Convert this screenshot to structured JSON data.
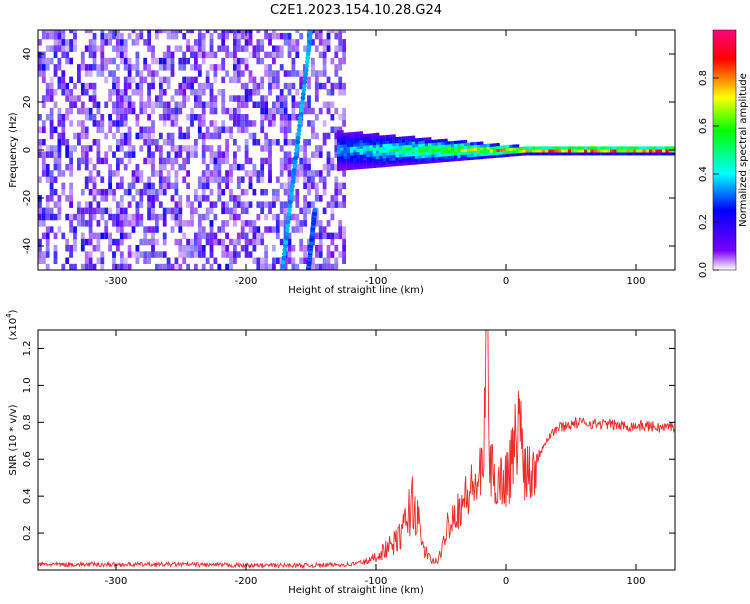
{
  "figure_title": "C2E1.2023.154.10.28.G24",
  "colors": {
    "snr_line": "#ee2b2b",
    "background": "#ffffff",
    "colorbar_stops": [
      "#ffffff",
      "#7a00ff",
      "#0000ff",
      "#00ffff",
      "#00ff00",
      "#ffff00",
      "#ff0000",
      "#ff0080"
    ]
  },
  "chart_data": [
    {
      "type": "heatmap",
      "title": "",
      "xlabel": "Height of straight line (km)",
      "ylabel": "Frequency (Hz)",
      "xlim": [
        -360,
        130
      ],
      "ylim": [
        -50,
        50
      ],
      "xticks": [
        -300,
        -200,
        -100,
        0,
        100
      ],
      "yticks": [
        -40,
        -20,
        0,
        20,
        40
      ],
      "colorbar": {
        "label": "Normalized spectral amplitude",
        "range": [
          0,
          1
        ],
        "ticks": [
          "0.0",
          "0.2",
          "0.4",
          "0.6",
          "0.8"
        ]
      },
      "features": [
        {
          "name": "noise",
          "x_range": [
            -360,
            -125
          ],
          "y_range": [
            -50,
            50
          ],
          "level": 0.15
        },
        {
          "name": "diagonal_streak",
          "x_start": -172,
          "y_start": -50,
          "x_end": -150,
          "y_end": 50,
          "level": 0.3
        },
        {
          "name": "lower_streak",
          "x_start": -152,
          "y_start": -50,
          "x_end": -147,
          "y_end": -25,
          "level": 0.25
        },
        {
          "name": "signal_band",
          "x_range": [
            -130,
            130
          ],
          "y_center": 0,
          "half_width_start": 8,
          "half_width_end": 1.5,
          "level_start": 0.35,
          "level_end": 0.92
        }
      ]
    },
    {
      "type": "line",
      "title": "",
      "xlabel": "Height of straight line (km)",
      "ylabel": "SNR (10 * v/v)",
      "yscale_label": "(x10^4)",
      "xlim": [
        -360,
        130
      ],
      "ylim": [
        0,
        1.3
      ],
      "xticks": [
        -300,
        -200,
        -100,
        0,
        100
      ],
      "yticks": [
        "0.2",
        "0.4",
        "0.6",
        "0.8",
        "1.0",
        "1.2"
      ],
      "series": [
        {
          "x": [
            -360,
            -300,
            -250,
            -200,
            -150,
            -120,
            -105,
            -95,
            -85,
            -80,
            -75,
            -72,
            -68,
            -65,
            -60,
            -55,
            -50,
            -45,
            -40,
            -35,
            -30,
            -25,
            -20,
            -17,
            -15,
            -12,
            -10,
            -5,
            0,
            5,
            10,
            15,
            20,
            25,
            30,
            35,
            40,
            50,
            60,
            70,
            80,
            90,
            100,
            110,
            120,
            130
          ],
          "y": [
            0.03,
            0.03,
            0.03,
            0.025,
            0.025,
            0.03,
            0.05,
            0.1,
            0.15,
            0.2,
            0.3,
            0.38,
            0.28,
            0.15,
            0.07,
            0.04,
            0.08,
            0.25,
            0.3,
            0.35,
            0.4,
            0.45,
            0.5,
            0.55,
            1.3,
            0.55,
            0.5,
            0.48,
            0.5,
            0.6,
            0.82,
            0.55,
            0.55,
            0.62,
            0.7,
            0.74,
            0.77,
            0.79,
            0.8,
            0.79,
            0.79,
            0.78,
            0.78,
            0.78,
            0.77,
            0.78
          ]
        }
      ]
    }
  ]
}
